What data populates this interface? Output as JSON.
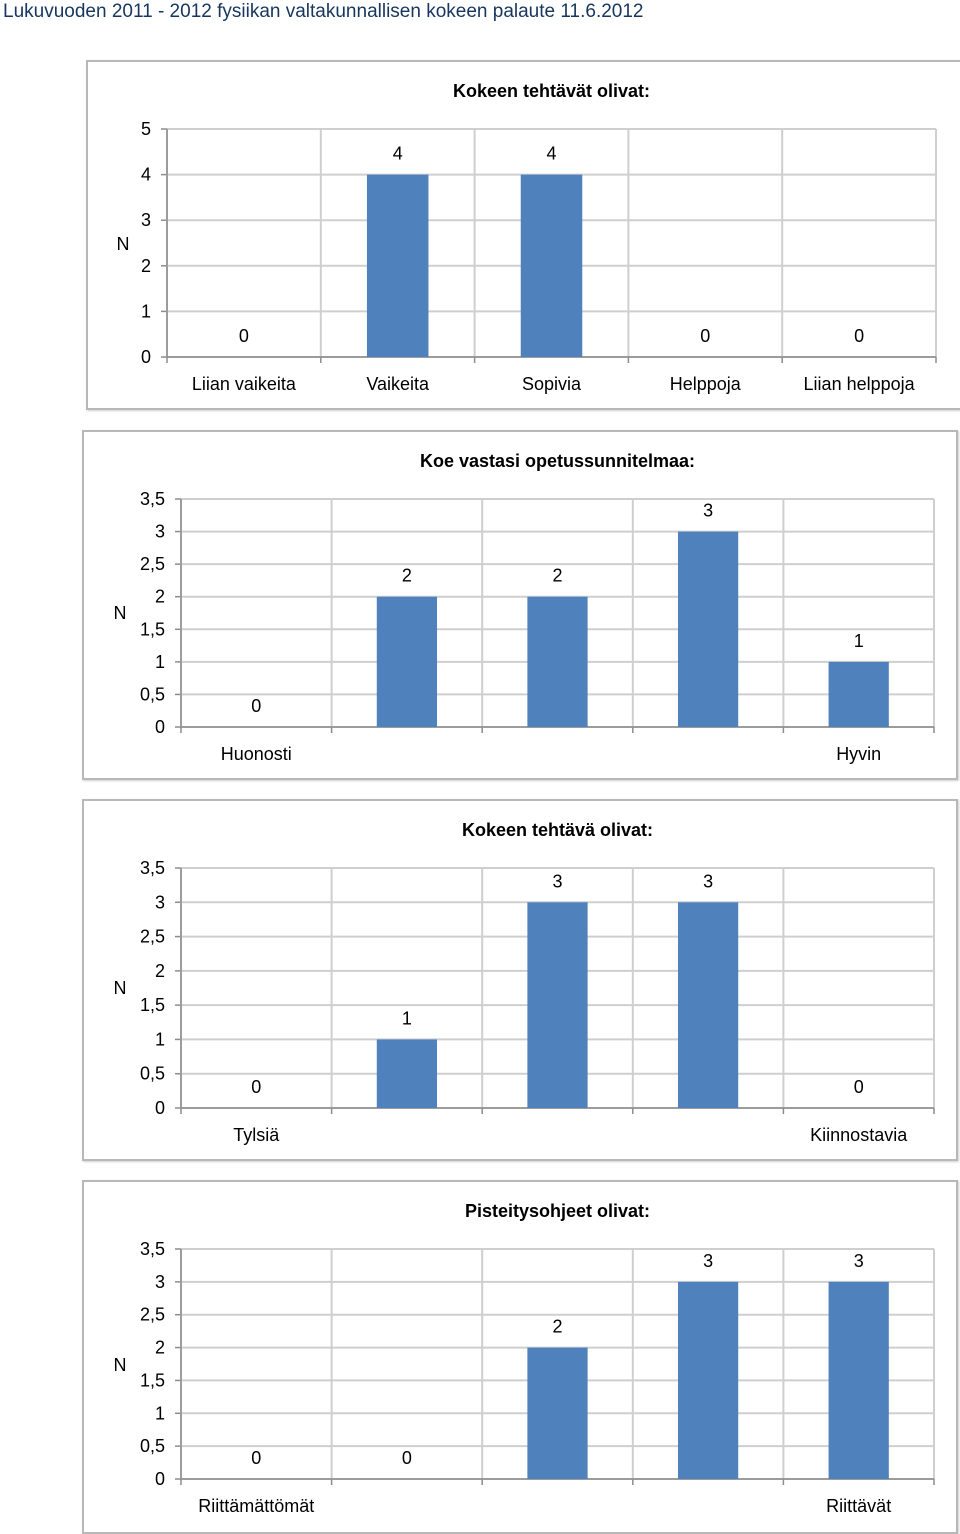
{
  "page": {
    "title": "Lukuvuoden 2011 - 2012 fysiikan valtakunnallisen kokeen palaute 11.6.2012"
  },
  "colors": {
    "bar": "#4f81bd",
    "grid": "#cfcfcf",
    "axis": "#8c8c8c",
    "border": "#b8b8b8",
    "title_text": "#17365d"
  },
  "chart_data": [
    {
      "type": "bar",
      "title": "Kokeen tehtävät olivat:",
      "ylabel": "N",
      "xlabel": "",
      "categories": [
        "Liian vaikeita",
        "Vaikeita",
        "Sopivia",
        "Helppoja",
        "Liian helppoja"
      ],
      "values": [
        0,
        4,
        4,
        0,
        0
      ],
      "data_labels": [
        "0",
        "4",
        "4",
        "0",
        "0"
      ],
      "ylim": [
        0,
        5
      ],
      "yticks": [
        "0",
        "1",
        "2",
        "3",
        "4",
        "5"
      ],
      "grid": true,
      "legend": "none"
    },
    {
      "type": "bar",
      "title": "Koe vastasi opetussunnitelmaa:",
      "ylabel": "N",
      "xlabel": "",
      "categories": [
        "Huonosti",
        "",
        "",
        "",
        "Hyvin"
      ],
      "values": [
        0,
        2,
        2,
        3,
        1
      ],
      "data_labels": [
        "0",
        "2",
        "2",
        "3",
        "1"
      ],
      "ylim": [
        0,
        3.5
      ],
      "yticks": [
        "0",
        "0,5",
        "1",
        "1,5",
        "2",
        "2,5",
        "3",
        "3,5"
      ],
      "grid": true,
      "legend": "none"
    },
    {
      "type": "bar",
      "title": "Kokeen tehtävä olivat:",
      "ylabel": "N",
      "xlabel": "",
      "categories": [
        "Tylsiä",
        "",
        "",
        "",
        "Kiinnostavia"
      ],
      "values": [
        0,
        1,
        3,
        3,
        0
      ],
      "data_labels": [
        "0",
        "1",
        "3",
        "3",
        "0"
      ],
      "ylim": [
        0,
        3.5
      ],
      "yticks": [
        "0",
        "0,5",
        "1",
        "1,5",
        "2",
        "2,5",
        "3",
        "3,5"
      ],
      "grid": true,
      "legend": "none"
    },
    {
      "type": "bar",
      "title": "Pisteitysohjeet olivat:",
      "ylabel": "N",
      "xlabel": "",
      "categories": [
        "Riittämättömät",
        "",
        "",
        "",
        "Riittävät"
      ],
      "values": [
        0,
        0,
        2,
        3,
        3
      ],
      "data_labels": [
        "0",
        "0",
        "2",
        "3",
        "3"
      ],
      "ylim": [
        0,
        3.5
      ],
      "yticks": [
        "0",
        "0,5",
        "1",
        "1,5",
        "2",
        "2,5",
        "3",
        "3,5"
      ],
      "grid": true,
      "legend": "none"
    }
  ]
}
